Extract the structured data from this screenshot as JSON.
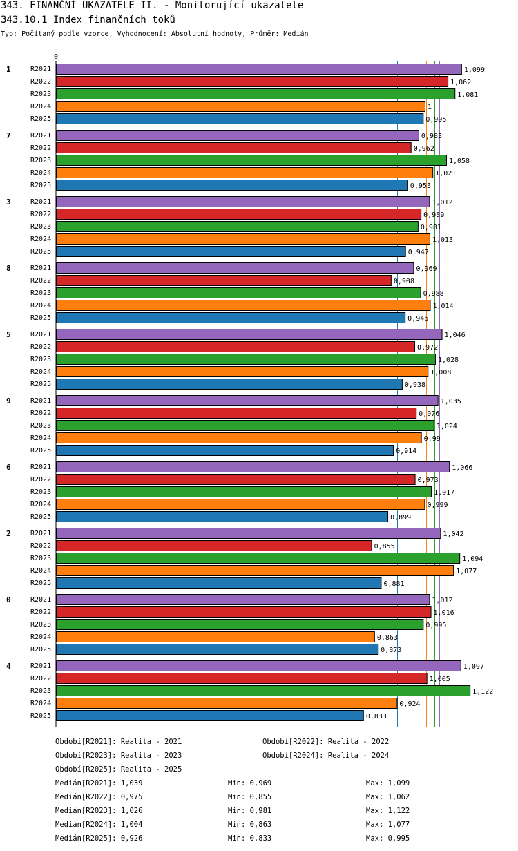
{
  "header": {
    "title": "343. FINANČNÍ UKAZATELE II. - Monitorující ukazatele",
    "subtitle": "343.10.1 Index finančních toků",
    "type_line": "Typ: Počítaný podle vzorce, Vyhodnocení: Absolutní hodnoty, Průměr: Medián"
  },
  "colors": {
    "R2021": "#9467bd",
    "R2022": "#d62728",
    "R2023": "#2ca02c",
    "R2024": "#ff7f0e",
    "R2025": "#1f77b4"
  },
  "chart_data": {
    "type": "bar",
    "orientation": "horizontal",
    "axis_zero_label": "0",
    "xlim": [
      0,
      1.22
    ],
    "series_names": [
      "R2021",
      "R2022",
      "R2023",
      "R2024",
      "R2025"
    ],
    "medians": {
      "R2021": 1.039,
      "R2022": 0.975,
      "R2023": 1.026,
      "R2024": 1.004,
      "R2025": 0.926
    },
    "groups": [
      {
        "label": "1",
        "values": [
          1.099,
          1.062,
          1.081,
          1,
          0.995
        ],
        "value_labels": [
          "1,099",
          "1,062",
          "1,081",
          "1",
          "0,995"
        ]
      },
      {
        "label": "7",
        "values": [
          0.983,
          0.962,
          1.058,
          1.021,
          0.953
        ],
        "value_labels": [
          "0,983",
          "0,962",
          "1,058",
          "1,021",
          "0,953"
        ]
      },
      {
        "label": "3",
        "values": [
          1.012,
          0.989,
          0.981,
          1.013,
          0.947
        ],
        "value_labels": [
          "1,012",
          "0,989",
          "0,981",
          "1,013",
          "0,947"
        ]
      },
      {
        "label": "8",
        "values": [
          0.969,
          0.908,
          0.988,
          1.014,
          0.946
        ],
        "value_labels": [
          "0,969",
          "0,908",
          "0,988",
          "1,014",
          "0,946"
        ]
      },
      {
        "label": "5",
        "values": [
          1.046,
          0.972,
          1.028,
          1.008,
          0.938
        ],
        "value_labels": [
          "1,046",
          "0,972",
          "1,028",
          "1,008",
          "0,938"
        ]
      },
      {
        "label": "9",
        "values": [
          1.035,
          0.976,
          1.024,
          0.99,
          0.914
        ],
        "value_labels": [
          "1,035",
          "0,976",
          "1,024",
          "0,99",
          "0,914"
        ]
      },
      {
        "label": "6",
        "values": [
          1.066,
          0.973,
          1.017,
          0.999,
          0.899
        ],
        "value_labels": [
          "1,066",
          "0,973",
          "1,017",
          "0,999",
          "0,899"
        ]
      },
      {
        "label": "2",
        "values": [
          1.042,
          0.855,
          1.094,
          1.077,
          0.881
        ],
        "value_labels": [
          "1,042",
          "0,855",
          "1,094",
          "1,077",
          "0,881"
        ]
      },
      {
        "label": "0",
        "values": [
          1.012,
          1.016,
          0.995,
          0.863,
          0.873
        ],
        "value_labels": [
          "1,012",
          "1,016",
          "0,995",
          "0,863",
          "0,873"
        ]
      },
      {
        "label": "4",
        "values": [
          1.097,
          1.005,
          1.122,
          0.924,
          0.833
        ],
        "value_labels": [
          "1,097",
          "1,005",
          "1,122",
          "0,924",
          "0,833"
        ]
      }
    ]
  },
  "legend": {
    "periods": [
      "Období[R2021]: Realita - 2021",
      "Období[R2022]: Realita - 2022",
      "Období[R2023]: Realita - 2023",
      "Období[R2024]: Realita - 2024",
      "Období[R2025]: Realita - 2025"
    ],
    "stats": [
      {
        "median": "Medián[R2021]: 1,039",
        "min": "Min: 0,969",
        "max": "Max: 1,099"
      },
      {
        "median": "Medián[R2022]: 0,975",
        "min": "Min: 0,855",
        "max": "Max: 1,062"
      },
      {
        "median": "Medián[R2023]: 1,026",
        "min": "Min: 0,981",
        "max": "Max: 1,122"
      },
      {
        "median": "Medián[R2024]: 1,004",
        "min": "Min: 0,863",
        "max": "Max: 1,077"
      },
      {
        "median": "Medián[R2025]: 0,926",
        "min": "Min: 0,833",
        "max": "Max: 0,995"
      }
    ]
  }
}
